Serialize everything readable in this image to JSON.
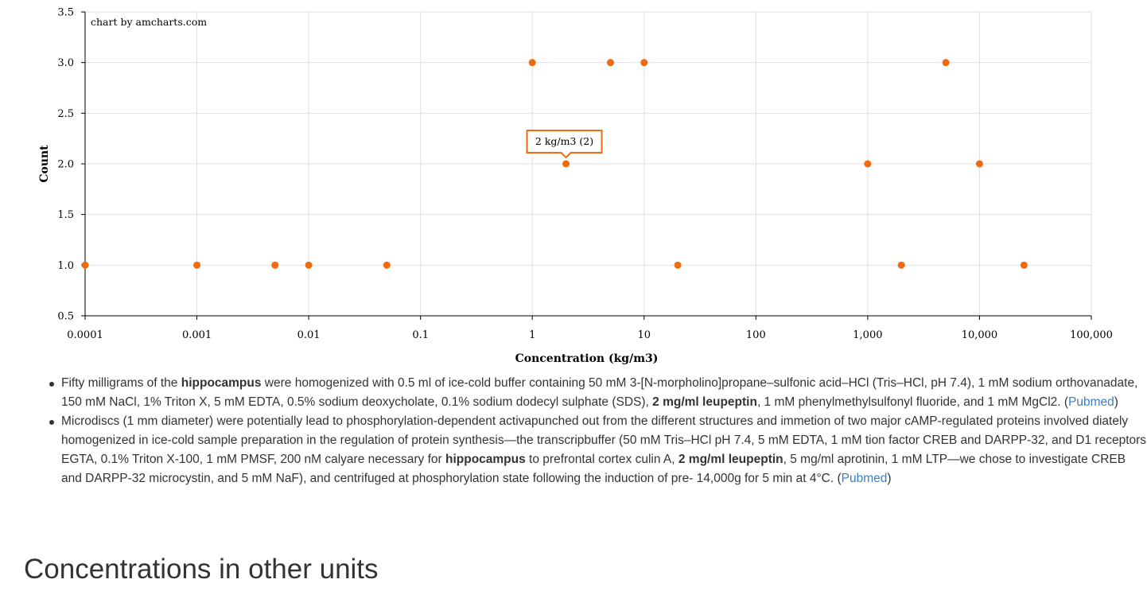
{
  "chart_data": {
    "type": "scatter",
    "credit": "chart by amcharts.com",
    "xlabel": "Concentration (kg/m3)",
    "ylabel": "Count",
    "x_scale": "log",
    "xlim": [
      0.0001,
      100000
    ],
    "ylim": [
      0.5,
      3.5
    ],
    "x_ticks": [
      0.0001,
      0.001,
      0.01,
      0.1,
      1,
      10,
      100,
      1000,
      10000,
      100000
    ],
    "x_tick_labels": [
      "0.0001",
      "0.001",
      "0.01",
      "0.1",
      "1",
      "10",
      "100",
      "1,000",
      "10,000",
      "100,000"
    ],
    "y_ticks": [
      0.5,
      1.0,
      1.5,
      2.0,
      2.5,
      3.0,
      3.5
    ],
    "y_tick_labels": [
      "0.5",
      "1.0",
      "1.5",
      "2.0",
      "2.5",
      "3.0",
      "3.5"
    ],
    "grid": true,
    "point_color": "#f26a10",
    "points": [
      {
        "x": 0.0001,
        "y": 1
      },
      {
        "x": 0.001,
        "y": 1
      },
      {
        "x": 0.005,
        "y": 1
      },
      {
        "x": 0.01,
        "y": 1
      },
      {
        "x": 0.05,
        "y": 1
      },
      {
        "x": 1,
        "y": 3
      },
      {
        "x": 2,
        "y": 2
      },
      {
        "x": 5,
        "y": 3
      },
      {
        "x": 10,
        "y": 3
      },
      {
        "x": 20,
        "y": 1
      },
      {
        "x": 1000,
        "y": 2
      },
      {
        "x": 2000,
        "y": 1
      },
      {
        "x": 5000,
        "y": 3
      },
      {
        "x": 10000,
        "y": 2
      },
      {
        "x": 25000,
        "y": 1
      }
    ],
    "tooltip": {
      "x": 2,
      "y": 2,
      "text": "2 kg/m3 (2)"
    }
  },
  "notes": [
    {
      "segments": [
        {
          "t": "Fifty milligrams of the "
        },
        {
          "t": "hippocampus",
          "b": true
        },
        {
          "t": " were homogenized with 0.5 ml of ice-cold buffer containing 50 mM 3-[N-morpholino]propane–sulfonic acid–HCl (Tris–HCl, pH 7.4), 1 mM sodium orthovanadate, 150 mM NaCl, 1% Triton X, 5 mM EDTA, 0.5% sodium deoxycholate, 0.1% sodium dodecyl sulphate (SDS), "
        },
        {
          "t": "2 mg/ml leupeptin",
          "b": true
        },
        {
          "t": ", 1 mM phenylmethylsulfonyl fluoride, and 1 mM MgCl2. ("
        },
        {
          "t": "Pubmed",
          "link": true
        },
        {
          "t": ")"
        }
      ]
    },
    {
      "segments": [
        {
          "t": "Microdiscs (1 mm diameter) were potentially lead to phosphorylation-dependent activapunched out from the different structures and immetion of two major cAMP-regulated proteins involved diately homogenized in ice-cold sample preparation in the regulation of protein synthesis—the transcripbuffer (50 mM Tris–HCl pH 7.4, 5 mM EDTA, 1 mM tion factor CREB and DARPP-32, and D1 receptors EGTA, 0.1% Triton X-100, 1 mM PMSF, 200 nM calyare necessary for "
        },
        {
          "t": "hippocampus",
          "b": true
        },
        {
          "t": " to prefrontal cortex culin A, "
        },
        {
          "t": "2 mg/ml leupeptin",
          "b": true
        },
        {
          "t": ", 5 mg/ml aprotinin, 1 mM LTP—we chose to investigate CREB and DARPP-32 microcystin, and 5 mM NaF), and centrifuged at phosphorylation state following the induction of pre- 14,000g for 5 min at 4°C. ("
        },
        {
          "t": "Pubmed",
          "link": true
        },
        {
          "t": ")"
        }
      ]
    }
  ],
  "section_title": "Concentrations in other units"
}
